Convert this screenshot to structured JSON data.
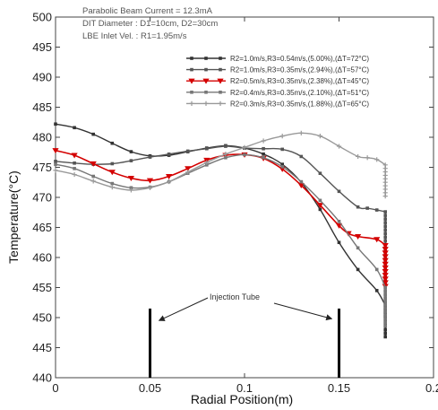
{
  "chart_data": {
    "type": "line",
    "xlabel": "Radial Position(m)",
    "ylabel": "Temperature(°C)",
    "xlim": [
      0,
      0.2
    ],
    "ylim": [
      440,
      500
    ],
    "x_ticks": [
      "0",
      "0.05",
      "0.1",
      "0.15",
      "0.2"
    ],
    "y_ticks": [
      "440",
      "445",
      "450",
      "455",
      "460",
      "465",
      "470",
      "475",
      "480",
      "485",
      "490",
      "495",
      "500"
    ],
    "notes": [
      "Parabolic Beam Current = 12.3mA",
      "DIT Diameter : D1=10cm, D2=30cm",
      "LBE Inlet Vel. : R1=1.95m/s"
    ],
    "legend_position": "top-right",
    "annotation": "Injection Tube",
    "injection_tubes": [
      {
        "x": 0.05,
        "top": 451.5
      },
      {
        "x": 0.15,
        "top": 451.5
      }
    ],
    "series": [
      {
        "name": "R2=1.0m/s,R3=0.54m/s,(5.00%),(ΔT=72°C)",
        "color": "#333333",
        "marker": "square",
        "x": [
          0,
          0.01,
          0.02,
          0.03,
          0.04,
          0.05,
          0.06,
          0.07,
          0.08,
          0.09,
          0.1,
          0.11,
          0.12,
          0.13,
          0.14,
          0.15,
          0.16,
          0.17,
          0.1745,
          0.1745
        ],
        "y": [
          482.2,
          481.6,
          480.5,
          479,
          477.6,
          476.9,
          477,
          477.6,
          478.2,
          478.6,
          478.2,
          477.2,
          475.5,
          472.5,
          468,
          462.5,
          458,
          454.5,
          452,
          446.8
        ]
      },
      {
        "name": "R2=1.0m/s,R3=0.35m/s,(2.94%),(ΔT=57°C)",
        "color": "#555555",
        "marker": "square",
        "x": [
          0,
          0.01,
          0.02,
          0.03,
          0.04,
          0.05,
          0.06,
          0.07,
          0.08,
          0.09,
          0.1,
          0.11,
          0.12,
          0.13,
          0.14,
          0.15,
          0.16,
          0.165,
          0.17,
          0.1745,
          0.1745
        ],
        "y": [
          476,
          475.7,
          475.5,
          475.6,
          476.1,
          476.7,
          477.2,
          477.7,
          478.1,
          478.5,
          478.2,
          478.1,
          478,
          476.8,
          474,
          471,
          468.4,
          468.2,
          467.9,
          467.6,
          450.2
        ]
      },
      {
        "name": "R2=0.5m/s,R3=0.35m/s,(2.38%),(ΔT=45°C)",
        "color": "#d40000",
        "marker": "triangle-down",
        "x": [
          0,
          0.01,
          0.02,
          0.03,
          0.04,
          0.05,
          0.06,
          0.07,
          0.08,
          0.09,
          0.1,
          0.11,
          0.12,
          0.13,
          0.14,
          0.15,
          0.155,
          0.16,
          0.17,
          0.1745,
          0.1745
        ],
        "y": [
          477.8,
          477,
          475.6,
          474.2,
          473.2,
          472.8,
          473.5,
          474.8,
          476.2,
          477,
          477.1,
          476.5,
          474.7,
          472,
          468.7,
          465.3,
          464,
          463.5,
          463,
          462,
          455.2
        ]
      },
      {
        "name": "R2=0.4m/s,R3=0.35m/s,(2.10%),(ΔT=51°C)",
        "color": "#777777",
        "marker": "square",
        "x": [
          0,
          0.01,
          0.02,
          0.03,
          0.04,
          0.05,
          0.06,
          0.07,
          0.08,
          0.09,
          0.1,
          0.11,
          0.12,
          0.13,
          0.14,
          0.15,
          0.16,
          0.17,
          0.1745,
          0.1745
        ],
        "y": [
          475.5,
          474.8,
          473.5,
          472.3,
          471.6,
          471.7,
          472.6,
          474,
          475.4,
          476.6,
          477.1,
          476.6,
          475.1,
          472.6,
          469.5,
          466,
          461.6,
          458,
          455,
          448.6
        ]
      },
      {
        "name": "R2=0.3m/s,R3=0.35m/s,(1.88%),(ΔT=65°C)",
        "color": "#999999",
        "marker": "plus",
        "x": [
          0,
          0.01,
          0.02,
          0.03,
          0.04,
          0.05,
          0.06,
          0.07,
          0.08,
          0.09,
          0.1,
          0.11,
          0.12,
          0.13,
          0.14,
          0.15,
          0.16,
          0.165,
          0.17,
          0.1745,
          0.1745
        ],
        "y": [
          474.5,
          473.8,
          472.7,
          471.7,
          471.2,
          471.6,
          472.6,
          474.2,
          475.8,
          477.2,
          478.3,
          479.4,
          480.2,
          480.7,
          480.2,
          478.5,
          476.8,
          476.6,
          476.3,
          475.4,
          470.2
        ]
      }
    ]
  }
}
